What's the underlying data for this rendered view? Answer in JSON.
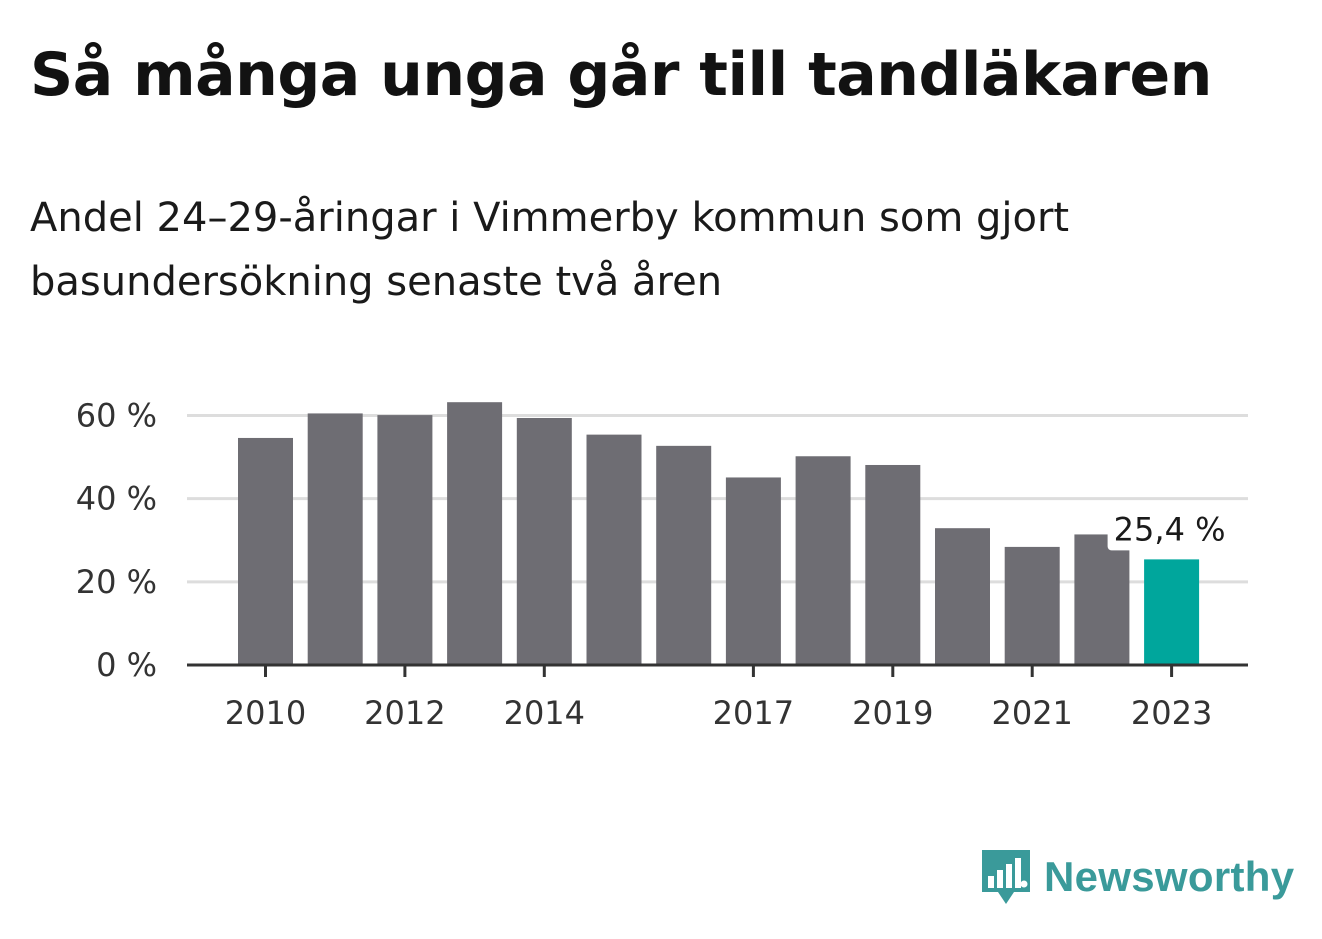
{
  "title": "Så många unga går till tandläkaren",
  "subtitle": "Andel 24–29-åringar i Vimmerby kommun som gjort basundersökning senaste två åren",
  "brand": {
    "name": "Newsworthy",
    "icon": "newsworthy-logo-icon",
    "color": "#3a9a9a"
  },
  "colors": {
    "bar": "#6e6d73",
    "highlight": "#00a69c",
    "grid": "#dddddd",
    "axis": "#333333"
  },
  "chart_data": {
    "type": "bar",
    "title": "Så många unga går till tandläkaren",
    "subtitle": "Andel 24–29-åringar i Vimmerby kommun som gjort basundersökning senaste två åren",
    "xlabel": "",
    "ylabel": "",
    "categories": [
      "2010",
      "2011",
      "2012",
      "2013",
      "2014",
      "2015",
      "2016",
      "2017",
      "2018",
      "2019",
      "2020",
      "2021",
      "2022",
      "2023"
    ],
    "values": [
      54.6,
      60.5,
      60.1,
      63.2,
      59.4,
      55.4,
      52.7,
      45.1,
      50.2,
      48.1,
      32.9,
      28.4,
      31.4,
      25.4
    ],
    "highlight_index": 13,
    "ylim": [
      0,
      65
    ],
    "yticks": [
      0,
      20,
      40,
      60
    ],
    "ytick_labels": [
      "0 %",
      "20 %",
      "40 %",
      "60 %"
    ],
    "xtick_labels": [
      "2010",
      "2012",
      "2014",
      "2017",
      "2019",
      "2021",
      "2023"
    ],
    "annotations": [
      {
        "category": "2023",
        "text": "25,4 %"
      }
    ],
    "grid": true,
    "legend": "none"
  }
}
